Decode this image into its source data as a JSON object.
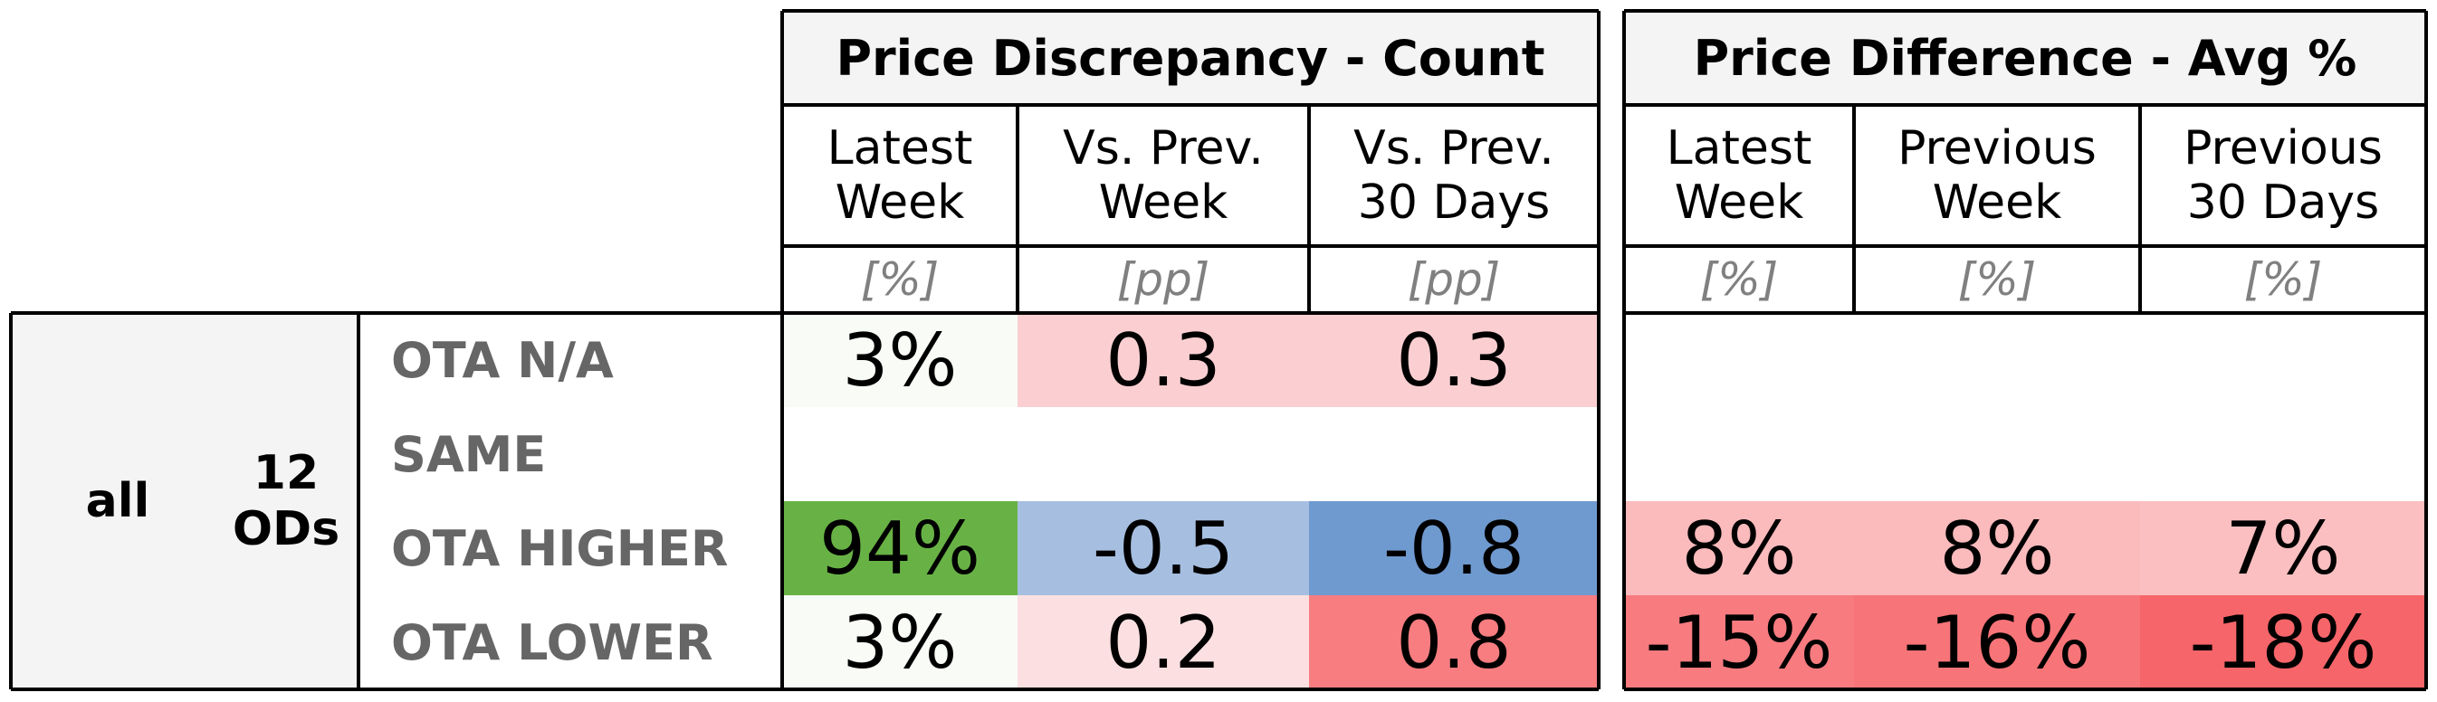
{
  "chart_data": {
    "type": "table",
    "group": {
      "label": "all",
      "sublabel": "12\nODs"
    },
    "sections": [
      {
        "title": "Price Discrepancy - Count",
        "columns": [
          {
            "label": "Latest\nWeek",
            "unit": "[%]"
          },
          {
            "label": "Vs. Prev.\nWeek",
            "unit": "[pp]"
          },
          {
            "label": "Vs. Prev.\n30 Days",
            "unit": "[pp]"
          }
        ],
        "rows": [
          {
            "label": "OTA N/A",
            "cells": [
              {
                "text": "3%",
                "color": "#f8fbf6"
              },
              {
                "text": "0.3",
                "color": "#fbcfd1"
              },
              {
                "text": "0.3",
                "color": "#fbcfd1"
              }
            ]
          },
          {
            "label": "SAME",
            "cells": [
              {
                "text": "",
                "color": "#ffffff"
              },
              {
                "text": "",
                "color": "#ffffff"
              },
              {
                "text": "",
                "color": "#ffffff"
              }
            ]
          },
          {
            "label": "OTA HIGHER",
            "cells": [
              {
                "text": "94%",
                "color": "#68b245"
              },
              {
                "text": "-0.5",
                "color": "#a6bfe0"
              },
              {
                "text": "-0.8",
                "color": "#6f9ad0"
              }
            ]
          },
          {
            "label": "OTA LOWER",
            "cells": [
              {
                "text": "3%",
                "color": "#f8fbf6"
              },
              {
                "text": "0.2",
                "color": "#fce0e1"
              },
              {
                "text": "0.8",
                "color": "#f77d80"
              }
            ]
          }
        ]
      },
      {
        "title": "Price Difference - Avg %",
        "columns": [
          {
            "label": "Latest\nWeek",
            "unit": "[%]"
          },
          {
            "label": "Previous\nWeek",
            "unit": "[%]"
          },
          {
            "label": "Previous\n30 Days",
            "unit": "[%]"
          }
        ],
        "rows": [
          {
            "label": "OTA N/A",
            "cells": [
              {
                "text": "",
                "color": "#ffffff"
              },
              {
                "text": "",
                "color": "#ffffff"
              },
              {
                "text": "",
                "color": "#ffffff"
              }
            ]
          },
          {
            "label": "SAME",
            "cells": [
              {
                "text": "",
                "color": "#ffffff"
              },
              {
                "text": "",
                "color": "#ffffff"
              },
              {
                "text": "",
                "color": "#ffffff"
              }
            ]
          },
          {
            "label": "OTA HIGHER",
            "cells": [
              {
                "text": "8%",
                "color": "#fbbabc"
              },
              {
                "text": "8%",
                "color": "#fbbabc"
              },
              {
                "text": "7%",
                "color": "#fbbfc1"
              }
            ]
          },
          {
            "label": "OTA LOWER",
            "cells": [
              {
                "text": "-15%",
                "color": "#f77b7f"
              },
              {
                "text": "-16%",
                "color": "#f77478"
              },
              {
                "text": "-18%",
                "color": "#f66569"
              }
            ]
          }
        ]
      }
    ]
  }
}
